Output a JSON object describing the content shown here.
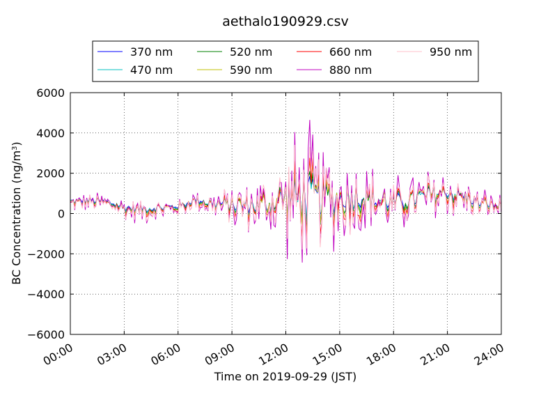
{
  "chart_data": {
    "type": "line",
    "title": "aethalo190929.csv",
    "xlabel": "Time on 2019-09-29 (JST)",
    "ylabel": "BC Concentration (ng/m",
    "ylabel_sup": "3",
    "ylabel_end": ")",
    "xlim": [
      "00:00",
      "24:00"
    ],
    "ylim": [
      -6000,
      6000
    ],
    "x_ticks": [
      "00:00",
      "03:00",
      "06:00",
      "09:00",
      "12:00",
      "15:00",
      "18:00",
      "21:00",
      "24:00"
    ],
    "y_ticks": [
      -6000,
      -4000,
      -2000,
      0,
      2000,
      4000,
      6000
    ],
    "y_tick_labels": [
      "−6000",
      "−4000",
      "−2000",
      "0",
      "2000",
      "4000",
      "6000"
    ],
    "grid": true,
    "legend_position": "top, above plot",
    "series": [
      {
        "name": "370 nm",
        "color": "#0000ff",
        "order": 0,
        "x": [
          "00:00",
          "01:00",
          "02:00",
          "03:00",
          "04:00",
          "05:00",
          "06:00",
          "07:00",
          "08:00",
          "09:00",
          "10:00",
          "11:00",
          "12:00",
          "13:00",
          "14:00",
          "15:00",
          "16:00",
          "17:00",
          "18:00",
          "19:00",
          "20:00",
          "21:00",
          "22:00",
          "23:00",
          "24:00"
        ],
        "y": [
          600,
          650,
          600,
          300,
          250,
          300,
          350,
          700,
          500,
          450,
          400,
          500,
          800,
          750,
          800,
          700,
          900,
          650,
          550,
          700,
          900,
          1100,
          800,
          500,
          400
        ]
      },
      {
        "name": "470 nm",
        "color": "#00bfbf",
        "order": 1,
        "x": [
          "00:00",
          "01:00",
          "02:00",
          "03:00",
          "04:00",
          "05:00",
          "06:00",
          "07:00",
          "08:00",
          "09:00",
          "10:00",
          "11:00",
          "12:00",
          "13:00",
          "14:00",
          "15:00",
          "16:00",
          "17:00",
          "18:00",
          "19:00",
          "20:00",
          "21:00",
          "22:00",
          "23:00",
          "24:00"
        ],
        "y": [
          580,
          630,
          580,
          280,
          230,
          280,
          330,
          680,
          480,
          430,
          380,
          480,
          780,
          730,
          780,
          680,
          880,
          630,
          530,
          680,
          880,
          1080,
          780,
          480,
          380
        ]
      },
      {
        "name": "520 nm",
        "color": "#008000",
        "order": 2,
        "x": [
          "00:00",
          "01:00",
          "02:00",
          "03:00",
          "04:00",
          "05:00",
          "06:00",
          "07:00",
          "08:00",
          "09:00",
          "10:00",
          "11:00",
          "12:00",
          "13:00",
          "14:00",
          "15:00",
          "16:00",
          "17:00",
          "18:00",
          "19:00",
          "20:00",
          "21:00",
          "22:00",
          "23:00",
          "24:00"
        ],
        "y": [
          560,
          610,
          560,
          260,
          210,
          260,
          310,
          660,
          460,
          410,
          360,
          460,
          760,
          710,
          760,
          660,
          860,
          610,
          510,
          660,
          860,
          1060,
          760,
          460,
          360
        ]
      },
      {
        "name": "590 nm",
        "color": "#bfbf00",
        "order": 3,
        "x": [
          "00:00",
          "01:00",
          "02:00",
          "03:00",
          "04:00",
          "05:00",
          "06:00",
          "07:00",
          "08:00",
          "09:00",
          "10:00",
          "11:00",
          "12:00",
          "13:00",
          "14:00",
          "15:00",
          "16:00",
          "17:00",
          "18:00",
          "19:00",
          "20:00",
          "21:00",
          "22:00",
          "23:00",
          "24:00"
        ],
        "y": [
          540,
          590,
          540,
          240,
          190,
          240,
          290,
          640,
          440,
          390,
          340,
          440,
          740,
          690,
          740,
          640,
          840,
          590,
          490,
          640,
          840,
          1040,
          740,
          440,
          340
        ]
      },
      {
        "name": "660 nm",
        "color": "#ff0000",
        "order": 4,
        "x": [
          "00:00",
          "01:00",
          "02:00",
          "03:00",
          "04:00",
          "05:00",
          "06:00",
          "07:00",
          "08:00",
          "09:00",
          "10:00",
          "11:00",
          "12:00",
          "13:00",
          "14:00",
          "15:00",
          "16:00",
          "17:00",
          "18:00",
          "19:00",
          "20:00",
          "21:00",
          "22:00",
          "23:00",
          "24:00"
        ],
        "y": [
          520,
          570,
          520,
          220,
          170,
          220,
          270,
          620,
          420,
          370,
          320,
          420,
          720,
          670,
          720,
          620,
          820,
          570,
          470,
          620,
          820,
          1020,
          720,
          420,
          320
        ]
      },
      {
        "name": "880 nm",
        "color": "#bf00bf",
        "order": 5,
        "x": [
          "00:00",
          "01:00",
          "02:00",
          "03:00",
          "04:00",
          "05:00",
          "06:00",
          "07:00",
          "08:00",
          "09:00",
          "10:00",
          "11:00",
          "12:00",
          "13:00",
          "14:00",
          "15:00",
          "16:00",
          "17:00",
          "18:00",
          "19:00",
          "20:00",
          "21:00",
          "22:00",
          "23:00",
          "24:00"
        ],
        "y": [
          500,
          550,
          500,
          200,
          150,
          200,
          250,
          600,
          400,
          350,
          300,
          400,
          700,
          650,
          700,
          600,
          800,
          550,
          450,
          600,
          800,
          1000,
          700,
          400,
          300
        ]
      },
      {
        "name": "950 nm",
        "color": "#ffc0cb",
        "order": 6,
        "x": [
          "00:00",
          "01:00",
          "02:00",
          "03:00",
          "04:00",
          "05:00",
          "06:00",
          "07:00",
          "08:00",
          "09:00",
          "10:00",
          "11:00",
          "12:00",
          "13:00",
          "14:00",
          "15:00",
          "16:00",
          "17:00",
          "18:00",
          "19:00",
          "20:00",
          "21:00",
          "22:00",
          "23:00",
          "24:00"
        ],
        "y": [
          480,
          530,
          480,
          180,
          130,
          180,
          230,
          580,
          380,
          330,
          280,
          380,
          680,
          630,
          680,
          580,
          780,
          530,
          430,
          580,
          780,
          980,
          680,
          380,
          280
        ]
      }
    ],
    "noise_envelope": {
      "x": [
        "00:00",
        "01:00",
        "02:00",
        "03:00",
        "04:00",
        "05:00",
        "06:00",
        "07:00",
        "08:00",
        "09:00",
        "10:00",
        "11:00",
        "12:00",
        "13:00",
        "14:00",
        "15:00",
        "16:00",
        "17:00",
        "18:00",
        "19:00",
        "20:00",
        "21:00",
        "22:00",
        "23:00",
        "24:00"
      ],
      "amplitude": [
        400,
        450,
        500,
        550,
        550,
        550,
        400,
        500,
        700,
        1000,
        1200,
        1600,
        2300,
        3500,
        2500,
        2000,
        2100,
        1500,
        1200,
        1200,
        1300,
        1200,
        900,
        700,
        600
      ]
    }
  }
}
